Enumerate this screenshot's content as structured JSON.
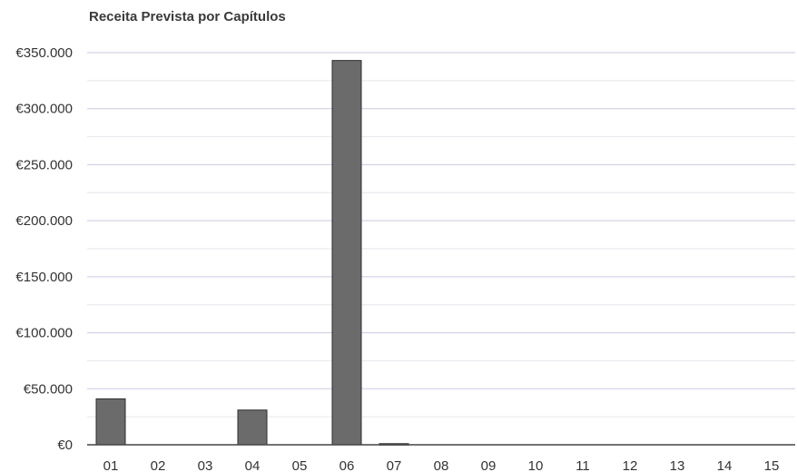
{
  "chart_data": {
    "type": "bar",
    "title": "Receita Prevista por Capítulos",
    "xlabel": "",
    "ylabel": "",
    "categories": [
      "01",
      "02",
      "03",
      "04",
      "05",
      "06",
      "07",
      "08",
      "09",
      "10",
      "11",
      "12",
      "13",
      "14",
      "15"
    ],
    "values": [
      41000,
      0,
      0,
      31000,
      0,
      343000,
      1000,
      0,
      0,
      0,
      0,
      0,
      0,
      0,
      0
    ],
    "ylim": [
      0,
      350000
    ],
    "yticks": [
      0,
      50000,
      100000,
      150000,
      200000,
      250000,
      300000,
      350000
    ],
    "ytick_labels": [
      "€0",
      "€50.000",
      "€100.000",
      "€150.000",
      "€200.000",
      "€250.000",
      "€300.000",
      "€350.000"
    ],
    "grid": true,
    "legend": "none",
    "colors": {
      "bar_fill": "#6b6b6b",
      "bar_stroke": "#2e2e2e",
      "gridline": "#c9c9e2",
      "axis": "#444444"
    }
  }
}
